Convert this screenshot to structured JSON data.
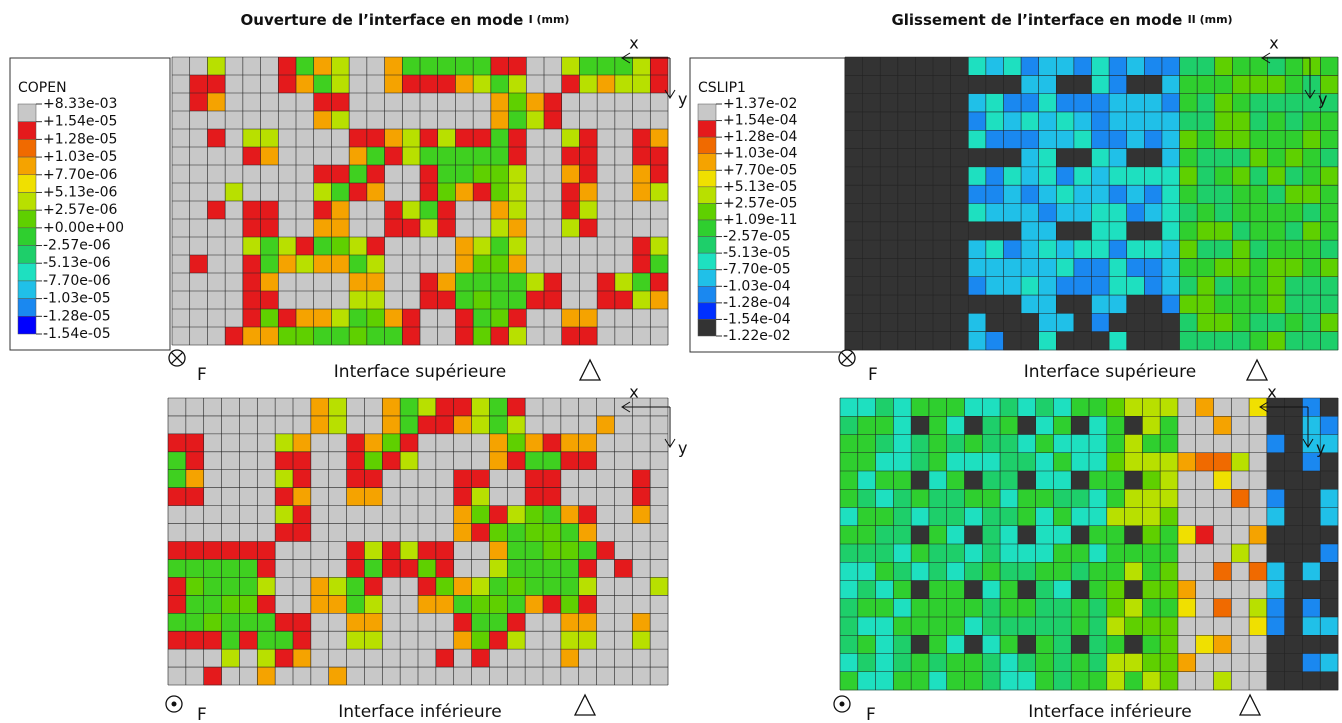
{
  "panels": [
    {
      "title": "Ouverture de l’interface en mode",
      "title_unit": "I (mm)",
      "legend": {
        "title": "COPEN",
        "labels": [
          "+8.33e-03",
          "+1.54e-05",
          "+1.28e-05",
          "+1.03e-05",
          "+7.70e-06",
          "+5.13e-06",
          "+2.57e-06",
          "+0.00e+00",
          "-2.57e-06",
          "-5.13e-06",
          "-7.70e-06",
          "-1.03e-05",
          "-1.28e-05",
          "-1.54e-05"
        ]
      },
      "views": [
        {
          "caption": "Interface supérieure",
          "load": "F",
          "axes": [
            "x",
            "y"
          ]
        },
        {
          "caption": "Interface inférieure",
          "load": "F",
          "axes": [
            "x",
            "y"
          ]
        }
      ]
    },
    {
      "title": "Glissement de l’interface en mode",
      "title_unit": "II (mm)",
      "legend": {
        "title": "CSLIP1",
        "labels": [
          "+1.37e-02",
          "+1.54e-04",
          "+1.28e-04",
          "+1.03e-04",
          "+7.70e-05",
          "+5.13e-05",
          "+2.57e-05",
          "+1.09e-11",
          "-2.57e-05",
          "-5.13e-05",
          "-7.70e-05",
          "-1.03e-04",
          "-1.28e-04",
          "-1.54e-04",
          "-1.22e-02"
        ]
      },
      "views": [
        {
          "caption": "Interface supérieure",
          "load": "F",
          "axes": [
            "x",
            "y"
          ]
        },
        {
          "caption": "Interface inférieure",
          "load": "F",
          "axes": [
            "x",
            "y"
          ]
        }
      ]
    }
  ]
}
